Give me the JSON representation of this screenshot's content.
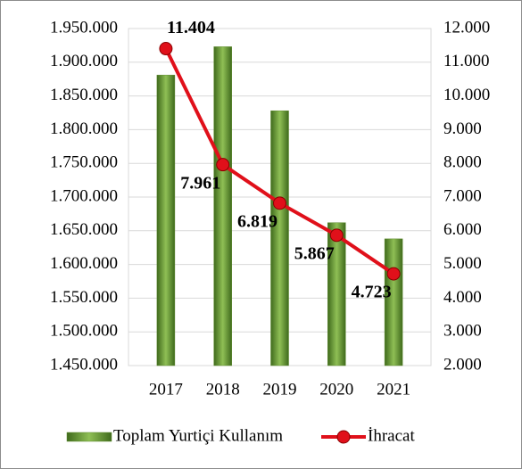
{
  "chart_data": {
    "type": "bar-line",
    "categories": [
      "2017",
      "2018",
      "2019",
      "2020",
      "2021"
    ],
    "series": [
      {
        "name": "Toplam Yurtiçi Kullanım",
        "type": "bar",
        "color": "#5e8a2e",
        "values": [
          1881000,
          1923000,
          1828000,
          1662000,
          1638000
        ]
      },
      {
        "name": "İhracat",
        "type": "line",
        "axis": "y2",
        "color": "#e0101a",
        "values": [
          11404,
          7961,
          6819,
          5867,
          4723
        ],
        "value_labels": [
          "11.404",
          "7.961",
          "6.819",
          "5.867",
          "4.723"
        ]
      }
    ],
    "ylim": [
      1450000,
      1950000
    ],
    "yticks": [
      {
        "value": 1450000,
        "label": "1.450.000"
      },
      {
        "value": 1500000,
        "label": "1.500.000"
      },
      {
        "value": 1550000,
        "label": "1.550.000"
      },
      {
        "value": 1600000,
        "label": "1.600.000"
      },
      {
        "value": 1650000,
        "label": "1.650.000"
      },
      {
        "value": 1700000,
        "label": "1.700.000"
      },
      {
        "value": 1750000,
        "label": "1.750.000"
      },
      {
        "value": 1800000,
        "label": "1.800.000"
      },
      {
        "value": 1850000,
        "label": "1.850.000"
      },
      {
        "value": 1900000,
        "label": "1.900.000"
      },
      {
        "value": 1950000,
        "label": "1.950.000"
      }
    ],
    "y2lim": [
      2000,
      12000
    ],
    "y2ticks": [
      {
        "value": 2000,
        "label": "2.000"
      },
      {
        "value": 3000,
        "label": "3.000"
      },
      {
        "value": 4000,
        "label": "4.000"
      },
      {
        "value": 5000,
        "label": "5.000"
      },
      {
        "value": 6000,
        "label": "6.000"
      },
      {
        "value": 7000,
        "label": "7.000"
      },
      {
        "value": 8000,
        "label": "8.000"
      },
      {
        "value": 9000,
        "label": "9.000"
      },
      {
        "value": 10000,
        "label": "10.000"
      },
      {
        "value": 11000,
        "label": "11.000"
      },
      {
        "value": 12000,
        "label": "12.000"
      }
    ],
    "grid": true,
    "legend": "bottom"
  }
}
